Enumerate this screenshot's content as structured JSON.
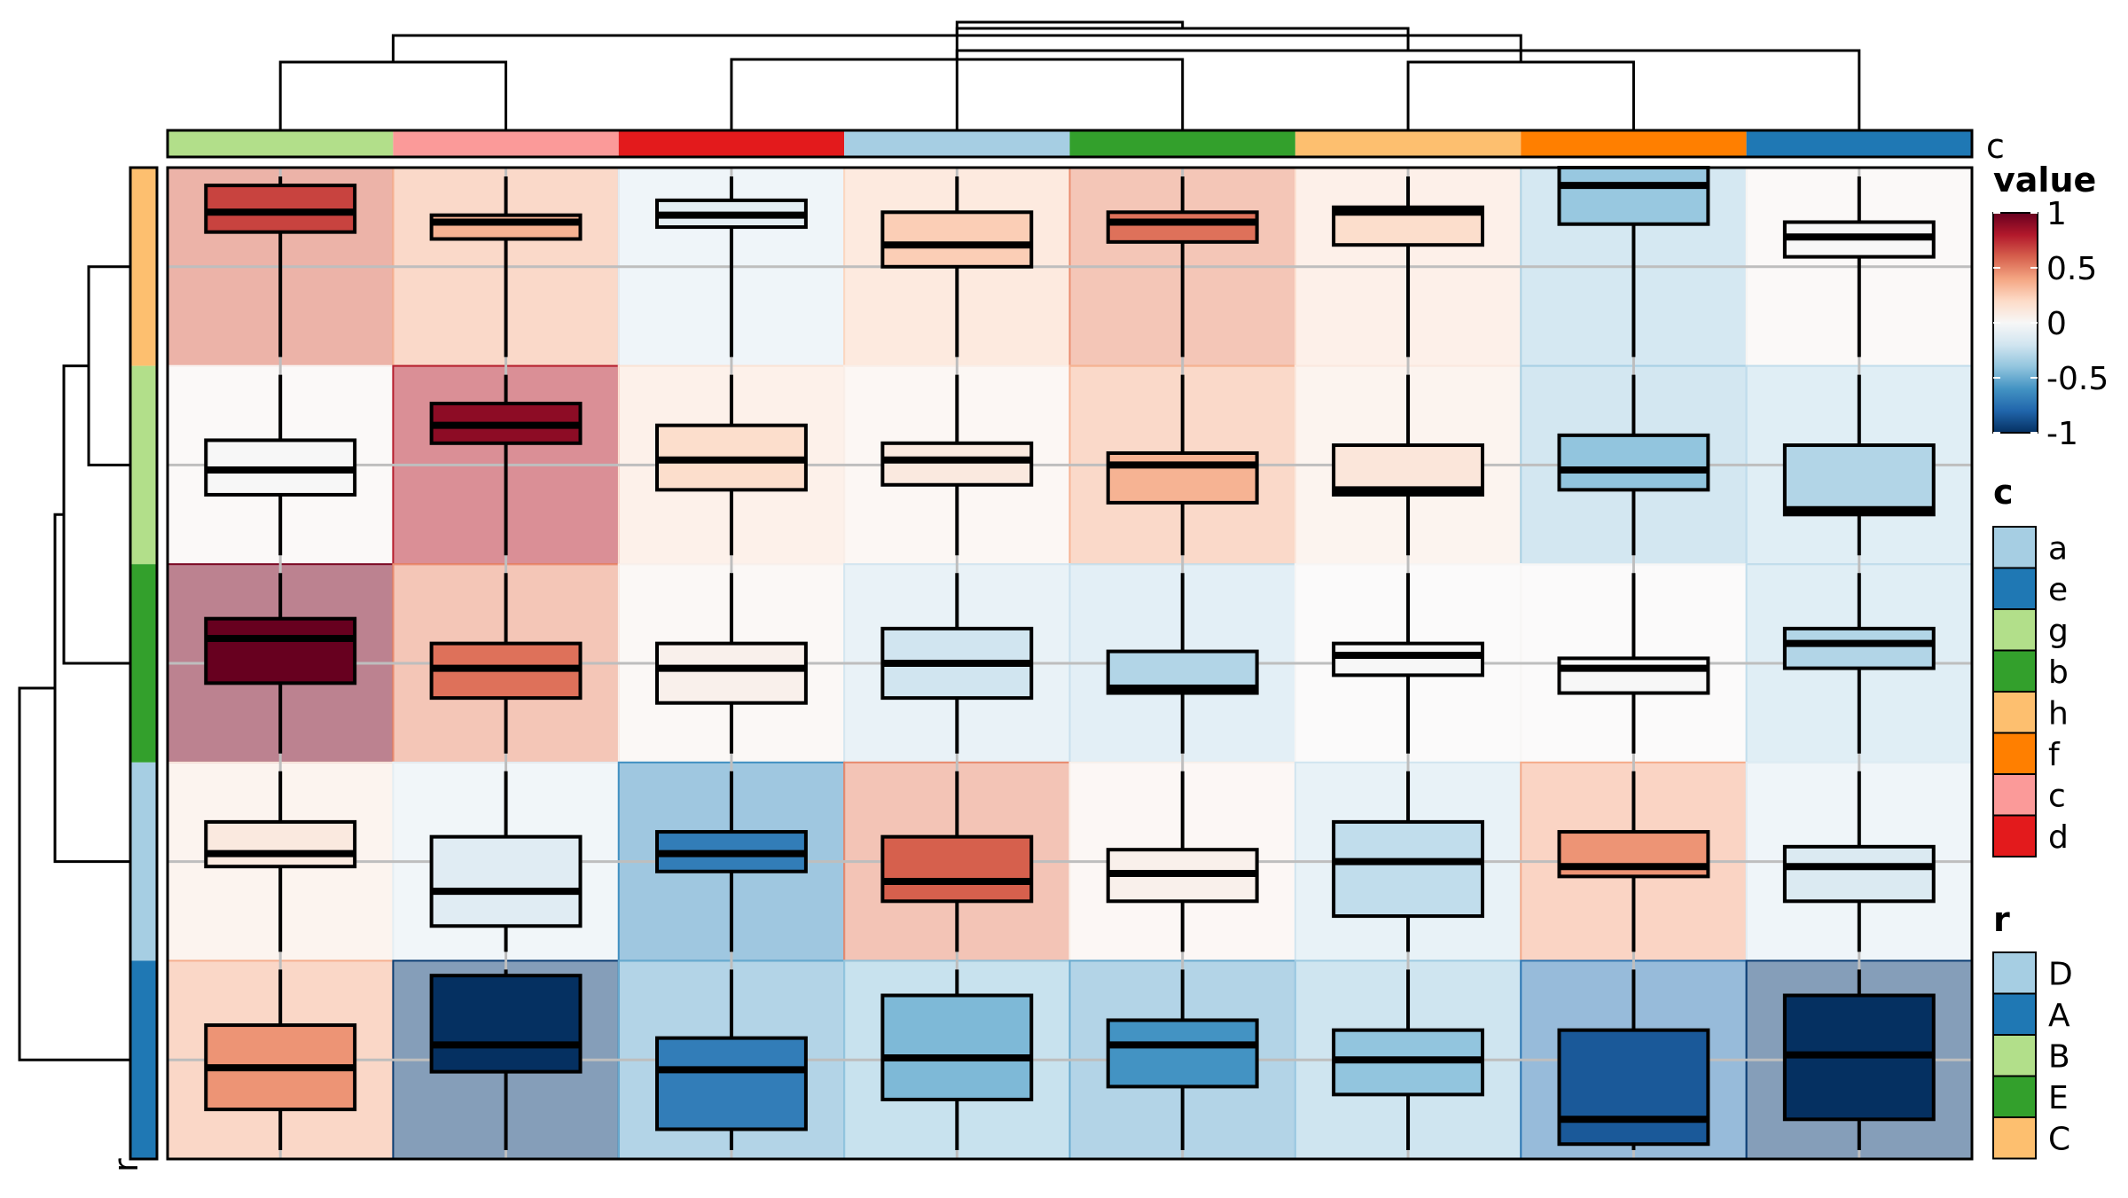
{
  "chart_data": {
    "type": "heatmap",
    "title": "",
    "columns": [
      "g",
      "c",
      "d",
      "a",
      "b",
      "h",
      "f",
      "e"
    ],
    "rows": [
      "C",
      "B",
      "E",
      "D",
      "A"
    ],
    "column_annotation_title": "c",
    "row_annotation_title": "r",
    "cell_values": [
      [
        0.58,
        0.35,
        -0.12,
        0.22,
        0.47,
        0.15,
        -0.32,
        0.02
      ],
      [
        0.02,
        0.78,
        0.14,
        0.06,
        0.35,
        0.1,
        -0.33,
        -0.25
      ],
      [
        0.95,
        0.47,
        0.04,
        -0.19,
        -0.23,
        0.01,
        0.01,
        -0.25
      ],
      [
        0.1,
        -0.1,
        -0.62,
        0.48,
        0.05,
        -0.2,
        0.38,
        -0.12
      ],
      [
        0.36,
        -0.95,
        -0.51,
        -0.4,
        -0.51,
        -0.36,
        -0.72,
        -0.95
      ]
    ],
    "boxplots": [
      [
        {
          "q1": 0.35,
          "median": 0.55,
          "q3": 0.82,
          "color_value": 0.68
        },
        {
          "q1": 0.28,
          "median": 0.45,
          "q3": 0.52,
          "color_value": 0.35
        },
        {
          "q1": 0.4,
          "median": 0.52,
          "q3": 0.67,
          "color_value": -0.1
        },
        {
          "q1": 0.0,
          "median": 0.22,
          "q3": 0.55,
          "color_value": 0.25
        },
        {
          "q1": 0.25,
          "median": 0.45,
          "q3": 0.55,
          "color_value": 0.55
        },
        {
          "q1": 0.22,
          "median": 0.55,
          "q3": 0.6,
          "color_value": 0.18
        },
        {
          "q1": 0.43,
          "median": 0.82,
          "q3": 1.0,
          "color_value": -0.38
        },
        {
          "q1": 0.1,
          "median": 0.3,
          "q3": 0.45,
          "color_value": 0.0
        }
      ],
      [
        {
          "q1": -0.3,
          "median": -0.05,
          "q3": 0.25,
          "color_value": 0.0
        },
        {
          "q1": 0.22,
          "median": 0.4,
          "q3": 0.62,
          "color_value": 0.9
        },
        {
          "q1": -0.25,
          "median": 0.05,
          "q3": 0.4,
          "color_value": 0.18
        },
        {
          "q1": -0.2,
          "median": 0.05,
          "q3": 0.22,
          "color_value": 0.1
        },
        {
          "q1": -0.38,
          "median": 0.0,
          "q3": 0.12,
          "color_value": 0.35
        },
        {
          "q1": -0.3,
          "median": -0.25,
          "q3": 0.2,
          "color_value": 0.12
        },
        {
          "q1": -0.25,
          "median": -0.05,
          "q3": 0.3,
          "color_value": -0.4
        },
        {
          "q1": -0.5,
          "median": -0.45,
          "q3": 0.2,
          "color_value": -0.3
        }
      ],
      [
        {
          "q1": -0.2,
          "median": 0.25,
          "q3": 0.45,
          "color_value": 1.0
        },
        {
          "q1": -0.35,
          "median": -0.05,
          "q3": 0.2,
          "color_value": 0.55
        },
        {
          "q1": -0.4,
          "median": -0.05,
          "q3": 0.2,
          "color_value": 0.05
        },
        {
          "q1": -0.35,
          "median": 0.0,
          "q3": 0.35,
          "color_value": -0.2
        },
        {
          "q1": -0.3,
          "median": -0.25,
          "q3": 0.12,
          "color_value": -0.3
        },
        {
          "q1": -0.12,
          "median": 0.08,
          "q3": 0.2,
          "color_value": 0.0
        },
        {
          "q1": -0.3,
          "median": -0.05,
          "q3": 0.05,
          "color_value": 0.0
        },
        {
          "q1": -0.05,
          "median": 0.2,
          "q3": 0.35,
          "color_value": -0.3
        }
      ],
      [
        {
          "q1": -0.05,
          "median": 0.08,
          "q3": 0.4,
          "color_value": 0.1
        },
        {
          "q1": -0.65,
          "median": -0.3,
          "q3": 0.25,
          "color_value": -0.12
        },
        {
          "q1": -0.1,
          "median": 0.08,
          "q3": 0.3,
          "color_value": -0.7
        },
        {
          "q1": -0.4,
          "median": -0.2,
          "q3": 0.25,
          "color_value": 0.6
        },
        {
          "q1": -0.4,
          "median": -0.12,
          "q3": 0.12,
          "color_value": 0.05
        },
        {
          "q1": -0.55,
          "median": 0.0,
          "q3": 0.4,
          "color_value": -0.25
        },
        {
          "q1": -0.15,
          "median": -0.05,
          "q3": 0.3,
          "color_value": 0.45
        },
        {
          "q1": -0.4,
          "median": -0.05,
          "q3": 0.15,
          "color_value": -0.15
        }
      ],
      [
        {
          "q1": -0.5,
          "median": -0.08,
          "q3": 0.35,
          "color_value": 0.45
        },
        {
          "q1": -0.12,
          "median": 0.15,
          "q3": 0.85,
          "color_value": -1.0
        },
        {
          "q1": -0.7,
          "median": -0.1,
          "q3": 0.22,
          "color_value": -0.7
        },
        {
          "q1": -0.4,
          "median": 0.02,
          "q3": 0.65,
          "color_value": -0.45
        },
        {
          "q1": -0.27,
          "median": 0.15,
          "q3": 0.4,
          "color_value": -0.6
        },
        {
          "q1": -0.35,
          "median": 0.0,
          "q3": 0.3,
          "color_value": -0.4
        },
        {
          "q1": -0.85,
          "median": -0.6,
          "q3": 0.3,
          "color_value": -0.85
        },
        {
          "q1": -0.6,
          "median": 0.05,
          "q3": 0.65,
          "color_value": -1.0
        }
      ]
    ],
    "color_scale": {
      "title": "value",
      "ticks": [
        "1",
        "0.5",
        "0",
        "-0.5",
        "-1"
      ],
      "range": [
        -1,
        1
      ],
      "stops": [
        "#053061",
        "#2166AC",
        "#4393C3",
        "#92C5DE",
        "#D1E5F0",
        "#F7F7F7",
        "#FDDBC7",
        "#F4A582",
        "#D6604D",
        "#B2182B",
        "#67001F"
      ]
    },
    "column_legend": {
      "title": "c",
      "items": [
        {
          "label": "a",
          "color": "#A6CEE3"
        },
        {
          "label": "e",
          "color": "#1F78B4"
        },
        {
          "label": "g",
          "color": "#B2DF8A"
        },
        {
          "label": "b",
          "color": "#33A02C"
        },
        {
          "label": "h",
          "color": "#FDBF6F"
        },
        {
          "label": "f",
          "color": "#FF7F00"
        },
        {
          "label": "c",
          "color": "#FB9A99"
        },
        {
          "label": "d",
          "color": "#E31A1C"
        }
      ]
    },
    "row_legend": {
      "title": "r",
      "items": [
        {
          "label": "D",
          "color": "#A6CEE3"
        },
        {
          "label": "A",
          "color": "#1F78B4"
        },
        {
          "label": "B",
          "color": "#B2DF8A"
        },
        {
          "label": "E",
          "color": "#33A02C"
        },
        {
          "label": "C",
          "color": "#FDBF6F"
        }
      ]
    },
    "column_colors": {
      "a": "#A6CEE3",
      "e": "#1F78B4",
      "g": "#B2DF8A",
      "b": "#33A02C",
      "h": "#FDBF6F",
      "f": "#FF7F00",
      "c": "#FB9A99",
      "d": "#E31A1C"
    },
    "row_colors": {
      "D": "#A6CEE3",
      "A": "#1F78B4",
      "B": "#B2DF8A",
      "E": "#33A02C",
      "C": "#FDBF6F"
    },
    "column_dendrogram": [
      [
        5,
        3
      ],
      [
        1,
        2
      ],
      [
        6,
        7
      ],
      [
        4,
        8
      ],
      [
        10,
        11
      ],
      [
        9,
        12
      ],
      [
        13,
        14
      ]
    ],
    "row_dendrogram": [
      [
        1,
        2
      ],
      [
        6,
        3
      ],
      [
        7,
        4
      ],
      [
        8,
        5
      ]
    ]
  }
}
